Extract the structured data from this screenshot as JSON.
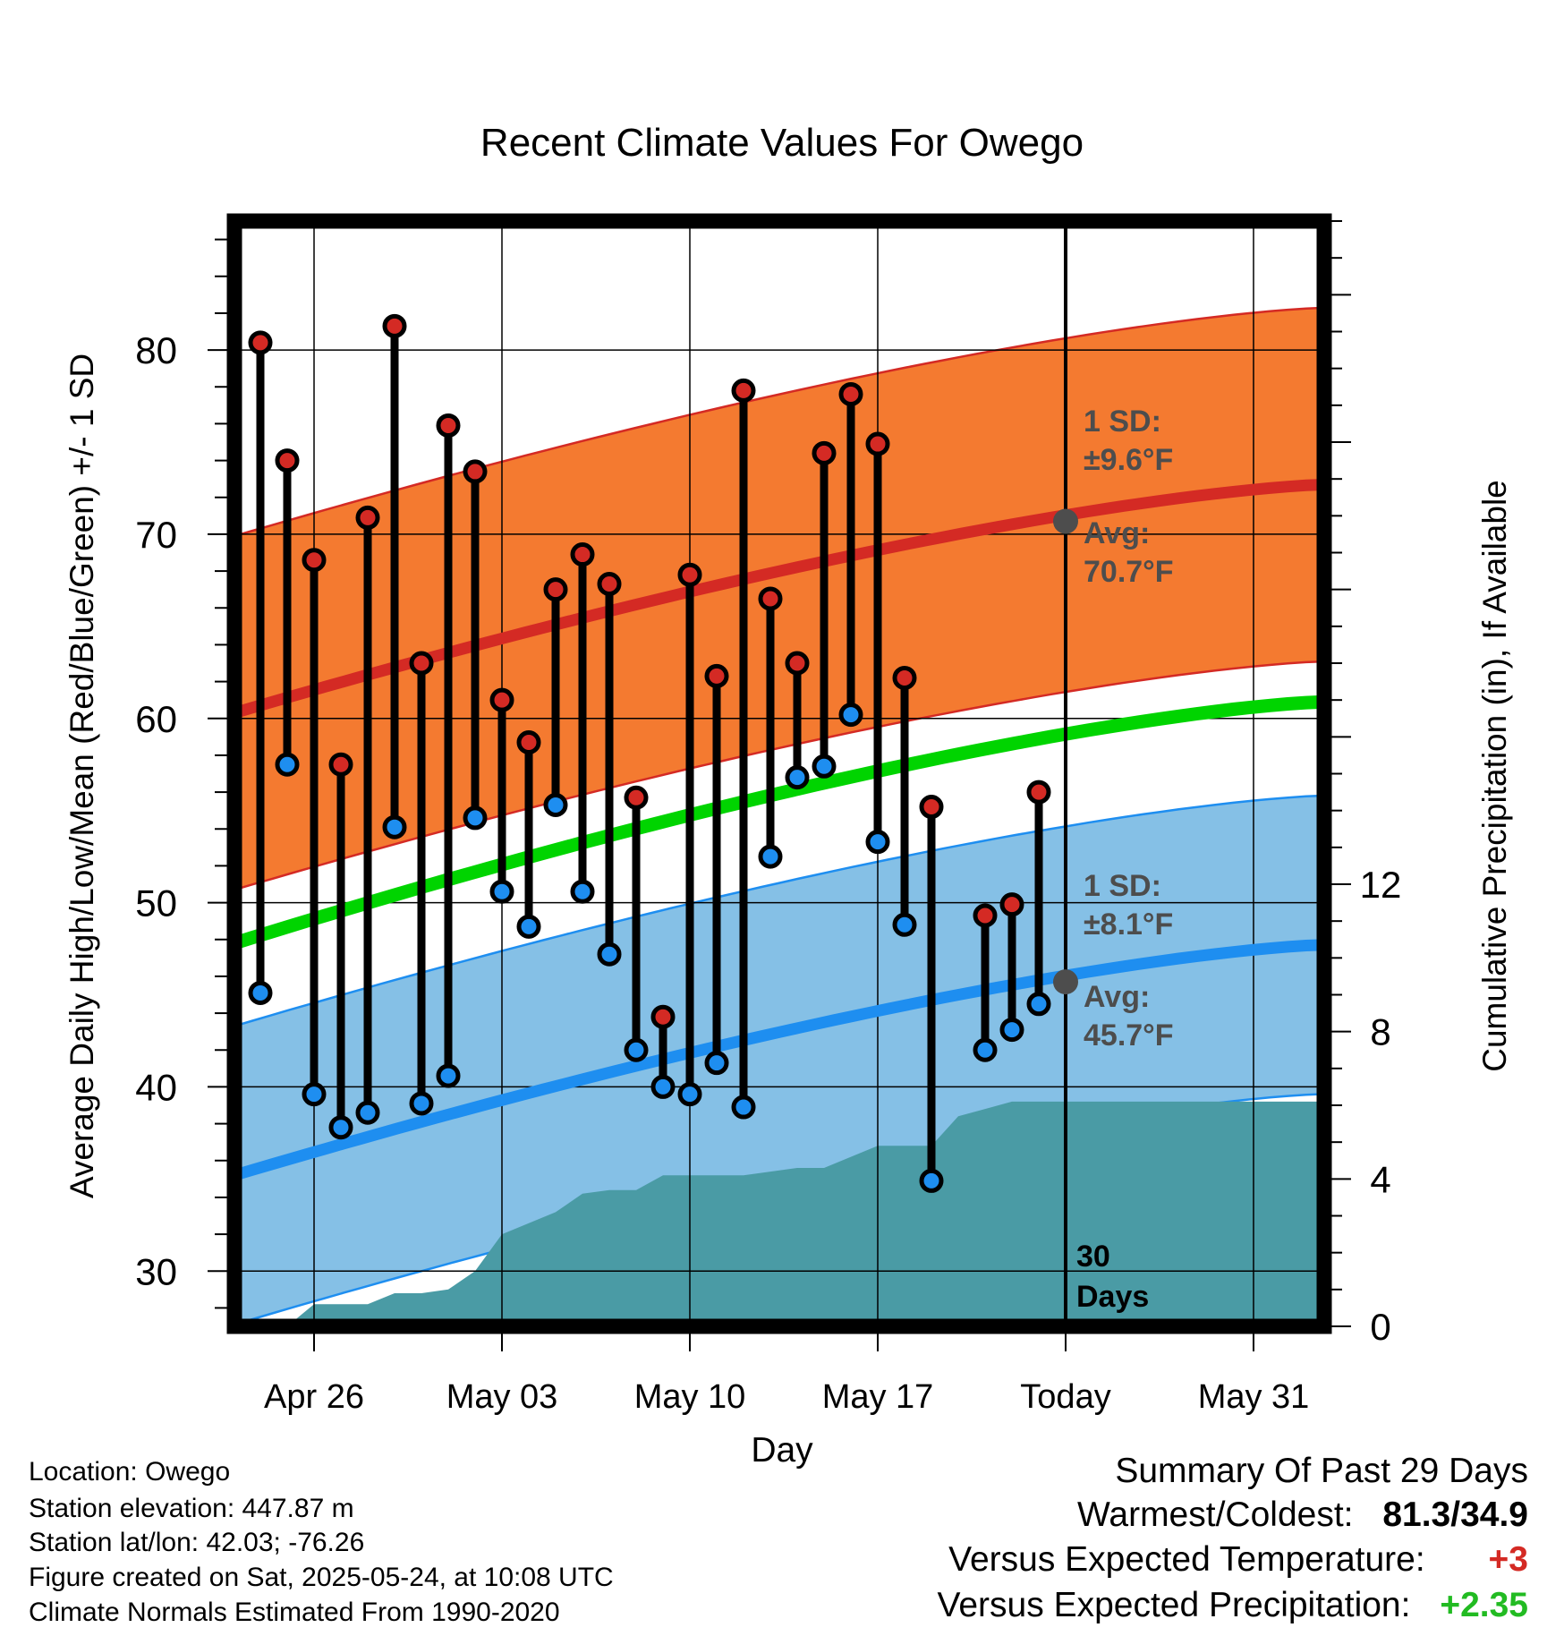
{
  "chart_data": {
    "type": "line",
    "title": "Recent Climate Values For Owego",
    "xlabel": "Day",
    "ylabel": "Average Daily High/Low/Mean (Red/Blue/Green) +/- 1 SD",
    "y2label": "Cumulative Precipitation (in), If Available",
    "ylim": [
      27,
      87
    ],
    "y2lim": [
      0,
      30
    ],
    "x_tick_labels": [
      "Apr 26",
      "May 03",
      "May 10",
      "May 17",
      "Today",
      "May 31"
    ],
    "y_ticks": [
      30,
      40,
      50,
      60,
      70,
      80
    ],
    "y2_ticks": [
      0,
      4,
      8,
      12
    ],
    "grid": true,
    "today_marker": {
      "label_line1": "30",
      "label_line2": "Days"
    },
    "daily_highs": [
      80.4,
      74.0,
      68.6,
      57.5,
      70.9,
      81.3,
      63.0,
      75.9,
      73.4,
      61.0,
      58.7,
      67.0,
      68.9,
      67.3,
      55.7,
      43.8,
      67.8,
      62.3,
      77.8,
      66.5,
      63.0,
      74.4,
      77.6,
      74.9,
      62.2,
      55.2,
      null,
      49.3,
      49.9,
      56.0
    ],
    "daily_lows": [
      45.1,
      57.5,
      39.6,
      37.8,
      38.6,
      54.1,
      39.1,
      40.6,
      54.6,
      50.6,
      48.7,
      55.3,
      50.6,
      47.2,
      42.0,
      40.0,
      39.6,
      41.3,
      38.9,
      52.5,
      56.8,
      57.4,
      60.2,
      53.3,
      48.8,
      34.9,
      null,
      42.0,
      43.1,
      44.5
    ],
    "normal_high": {
      "start": 60.3,
      "today": 70.7,
      "end": 73.0,
      "sd": 9.6
    },
    "normal_low": {
      "start": 35.2,
      "today": 45.7,
      "end": 48.8,
      "sd": 8.1
    },
    "normal_mean": {
      "start": 47.8,
      "end": 60.9
    },
    "cumulative_precip": [
      0,
      0,
      0.6,
      0.6,
      0.6,
      0.9,
      0.9,
      1.0,
      1.5,
      2.5,
      2.8,
      3.1,
      3.6,
      3.7,
      3.7,
      4.1,
      4.1,
      4.1,
      4.1,
      4.2,
      4.3,
      4.3,
      4.6,
      4.9,
      4.9,
      4.9,
      5.7,
      5.9,
      6.1,
      6.1,
      6.1
    ],
    "annotations": {
      "high_sd_label": "1 SD:",
      "high_sd_value": "±9.6°F",
      "high_avg_label": "Avg:",
      "high_avg_value": "70.7°F",
      "low_sd_label": "1 SD:",
      "low_sd_value": "±8.1°F",
      "low_avg_label": "Avg:",
      "low_avg_value": "45.7°F"
    },
    "colors": {
      "high_band": "#f47a30",
      "high_line": "#d42a24",
      "low_band": "#85c0e6",
      "low_line": "#1e8ef0",
      "mean_line": "#00d400",
      "precip": "#4a9ba5",
      "high_dot": "#d42a24",
      "low_dot": "#1e8ef0",
      "annotation_text": "#4d4d4d"
    }
  },
  "info": {
    "location": "Location: Owego",
    "elevation": "Station elevation: 447.87 m",
    "latlon": "Station lat/lon: 42.03; -76.26",
    "created": "Figure created on Sat, 2025-05-24, at 10:08 UTC",
    "normals": "Climate Normals Estimated From 1990-2020"
  },
  "summary": {
    "title": "Summary Of Past 29 Days",
    "warmest_label": "Warmest/Coldest:",
    "warmest_value": "81.3/34.9",
    "temp_label": "Versus Expected Temperature:",
    "temp_value": "+3",
    "temp_color": "#d42a24",
    "precip_label": "Versus Expected Precipitation:",
    "precip_value": "+2.35",
    "precip_color": "#22bb22"
  }
}
